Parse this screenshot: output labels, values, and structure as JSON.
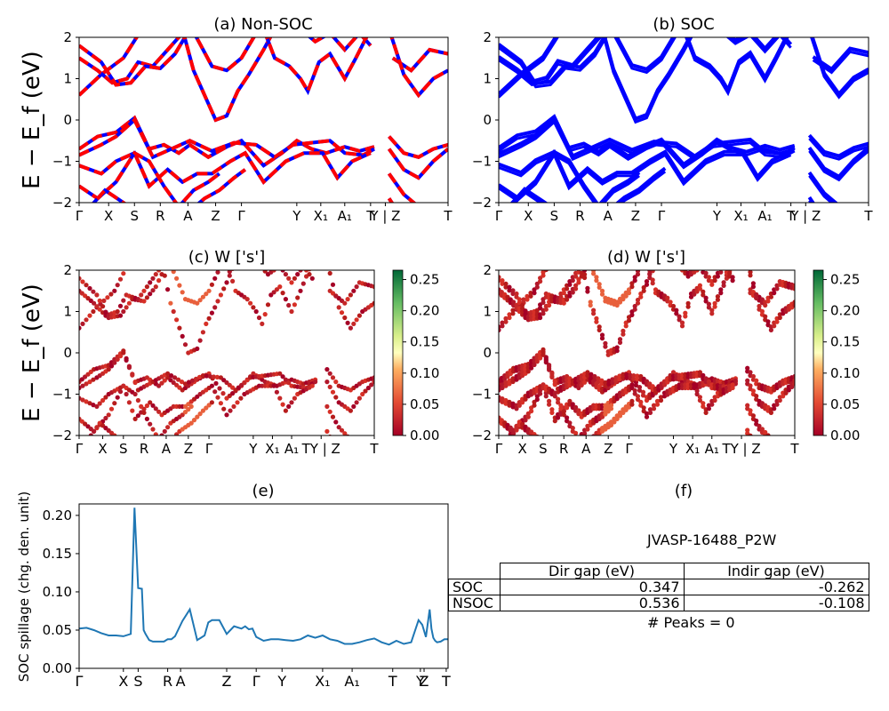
{
  "ylabel_band": "E − E_f (eV)",
  "ylabel_spillage": "SOC spillage (chg. den. unit)",
  "kpath_full": [
    "Γ",
    "X",
    "S",
    "R",
    "A",
    "Z",
    "Γ",
    "Y",
    "X₁",
    "A₁",
    "T",
    "Y | Z",
    "T"
  ],
  "kpath_colored": [
    "Γ",
    "X",
    "S",
    "R",
    "A",
    "Z",
    "Γ",
    "Y",
    "X₁",
    "A₁",
    "TY | Z",
    "T"
  ],
  "kpath_spillage": [
    "Γ",
    "X",
    "S",
    "R",
    "A",
    "Z",
    "Γ",
    "Y",
    "X₁",
    "A₁",
    "T",
    "Y",
    "Z",
    "T"
  ],
  "colors": {
    "soc": "#0000ff",
    "nonsoc": "#ff0000",
    "spillage": "#1f77b4"
  },
  "panels": {
    "a": {
      "title": "(a) Non-SOC"
    },
    "b": {
      "title": "(b) SOC"
    },
    "c": {
      "title": "(c)  W ['s']"
    },
    "d": {
      "title": "(d) W ['s']"
    },
    "e": {
      "title": "(e)"
    },
    "f": {
      "title": "(f)"
    }
  },
  "colorbar": {
    "ticks": [
      "0.00",
      "0.05",
      "0.10",
      "0.15",
      "0.20",
      "0.25"
    ],
    "cmap": "RdYlGn"
  },
  "info": {
    "jid": "JVASP-16488_P2W",
    "columns": [
      "Dir gap (eV)",
      "Indir gap (eV)"
    ],
    "rows": [
      {
        "label": "SOC",
        "dir": "0.347",
        "indir": "-0.262"
      },
      {
        "label": "NSOC",
        "dir": "0.536",
        "indir": "-0.108"
      }
    ],
    "peaks": "# Peaks = 0"
  },
  "chart_data": [
    {
      "type": "line",
      "title": "(a) Non-SOC",
      "ylabel": "E − E_f (eV)",
      "ylim": [
        -2,
        2
      ],
      "yticks": [
        -2,
        -1,
        0,
        1,
        2
      ]
    },
    {
      "type": "line",
      "title": "(b) SOC",
      "ylim": [
        -2,
        2
      ],
      "yticks": [
        -2,
        -1,
        0,
        1,
        2
      ]
    },
    {
      "type": "scatter",
      "title": "(c)  W ['s']",
      "ylabel": "E − E_f (eV)",
      "ylim": [
        -2,
        2
      ],
      "yticks": [
        -2,
        -1,
        0,
        1,
        2
      ]
    },
    {
      "type": "scatter",
      "title": "(d) W ['s']",
      "ylim": [
        -2,
        2
      ],
      "yticks": [
        -2,
        -1,
        0,
        1,
        2
      ]
    },
    {
      "type": "line",
      "title": "(e)",
      "ylabel": "SOC spillage (chg. den. unit)",
      "ylim": [
        0,
        0.21
      ],
      "yticks": [
        "0.00",
        "0.05",
        "0.10",
        "0.15",
        "0.20"
      ],
      "x": [
        0,
        0.02,
        0.04,
        0.06,
        0.08,
        0.1,
        0.12,
        0.14,
        0.15,
        0.16,
        0.17,
        0.175,
        0.18,
        0.19,
        0.2,
        0.21,
        0.22,
        0.23,
        0.24,
        0.25,
        0.26,
        0.28,
        0.3,
        0.32,
        0.33,
        0.34,
        0.35,
        0.36,
        0.38,
        0.4,
        0.42,
        0.44,
        0.45,
        0.46,
        0.47,
        0.48,
        0.5,
        0.52,
        0.54,
        0.56,
        0.58,
        0.6,
        0.62,
        0.64,
        0.66,
        0.68,
        0.7,
        0.72,
        0.74,
        0.76,
        0.78,
        0.8,
        0.82,
        0.84,
        0.86,
        0.88,
        0.9,
        0.92,
        0.93,
        0.94,
        0.95,
        0.955,
        0.96,
        0.965,
        0.97,
        0.98,
        0.99,
        1.0
      ],
      "values": [
        0.052,
        0.053,
        0.05,
        0.046,
        0.043,
        0.043,
        0.042,
        0.045,
        0.21,
        0.105,
        0.104,
        0.05,
        0.045,
        0.037,
        0.035,
        0.035,
        0.035,
        0.035,
        0.038,
        0.038,
        0.042,
        0.062,
        0.077,
        0.037,
        0.04,
        0.043,
        0.06,
        0.063,
        0.063,
        0.045,
        0.055,
        0.052,
        0.055,
        0.051,
        0.052,
        0.041,
        0.036,
        0.038,
        0.038,
        0.037,
        0.036,
        0.038,
        0.043,
        0.04,
        0.043,
        0.038,
        0.036,
        0.032,
        0.032,
        0.034,
        0.037,
        0.039,
        0.034,
        0.031,
        0.036,
        0.032,
        0.034,
        0.063,
        0.057,
        0.041,
        0.077,
        0.052,
        0.04,
        0.036,
        0.034,
        0.035,
        0.038,
        0.038
      ]
    }
  ]
}
